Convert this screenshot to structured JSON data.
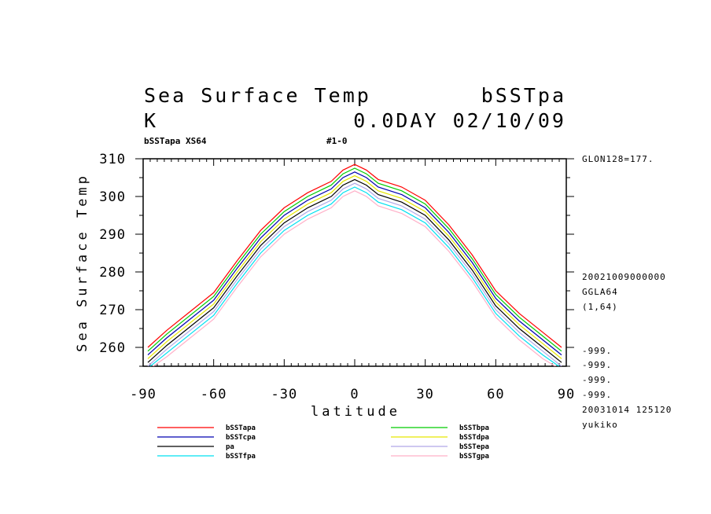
{
  "header": {
    "title": "Sea Surface Temp",
    "title_right": "bSSTpa",
    "unit": "K",
    "time": "0.0DAY 02/10/09",
    "sub_left": "bSSTapa XS64",
    "sub_mid": "#1-0"
  },
  "side_info": {
    "lon": "GLON128=177.",
    "date": "20021009000000",
    "grid": "GGLA64",
    "range": "(1,64)",
    "undef": [
      "-999.",
      "-999.",
      "-999.",
      "-999."
    ],
    "created": "20031014 125120",
    "user": "yukiko"
  },
  "chart_data": {
    "type": "line",
    "title": "Sea Surface Temp",
    "xlabel": "latitude",
    "ylabel": "Sea Surface Temp",
    "xlim": [
      -90,
      90
    ],
    "ylim": [
      255,
      310
    ],
    "x_ticks": [
      -90,
      -60,
      -30,
      0,
      30,
      60,
      90
    ],
    "y_ticks": [
      260,
      270,
      280,
      290,
      300,
      310
    ],
    "x": [
      -88,
      -80,
      -70,
      -60,
      -50,
      -40,
      -30,
      -20,
      -10,
      -5,
      0,
      5,
      10,
      20,
      30,
      40,
      50,
      60,
      70,
      80,
      88
    ],
    "series": [
      {
        "name": "bSSTapa",
        "color": "#ff0000",
        "values": [
          260.0,
          264.5,
          269.5,
          274.5,
          283.0,
          291.0,
          297.0,
          301.0,
          304.0,
          307.0,
          308.5,
          307.0,
          304.5,
          302.5,
          299.0,
          292.5,
          284.5,
          275.0,
          269.0,
          264.0,
          260.0
        ]
      },
      {
        "name": "bSSTbpa",
        "color": "#00cc00",
        "values": [
          259.0,
          263.5,
          268.5,
          273.5,
          282.0,
          290.0,
          296.0,
          300.0,
          303.0,
          306.0,
          307.5,
          306.0,
          303.5,
          301.5,
          298.0,
          291.5,
          283.5,
          274.0,
          268.0,
          263.0,
          259.0
        ]
      },
      {
        "name": "bSSTcpa",
        "color": "#0000b0",
        "values": [
          258.0,
          262.5,
          267.5,
          272.5,
          281.0,
          289.0,
          295.0,
          299.0,
          302.0,
          305.0,
          306.5,
          305.0,
          302.5,
          300.5,
          297.0,
          290.5,
          282.5,
          273.0,
          267.0,
          262.0,
          258.0
        ]
      },
      {
        "name": "bSSTdpa",
        "color": "#e6e600",
        "values": [
          257.0,
          261.5,
          266.5,
          271.5,
          280.0,
          288.0,
          294.0,
          298.0,
          301.0,
          304.0,
          305.5,
          304.0,
          301.5,
          299.5,
          296.0,
          289.5,
          281.5,
          272.0,
          266.0,
          261.0,
          257.0
        ]
      },
      {
        "name": "pa",
        "color": "#000000",
        "values": [
          256.0,
          260.5,
          265.5,
          270.5,
          279.0,
          287.0,
          293.0,
          297.0,
          300.0,
          303.0,
          304.5,
          303.0,
          300.5,
          298.5,
          295.0,
          288.5,
          280.5,
          271.0,
          265.0,
          260.0,
          256.0
        ]
      },
      {
        "name": "bSSTepa",
        "color": "#b0a8e8",
        "values": [
          255.0,
          259.5,
          264.5,
          269.5,
          278.0,
          286.0,
          292.0,
          296.0,
          299.0,
          302.0,
          303.5,
          302.0,
          299.5,
          297.5,
          294.0,
          287.5,
          279.5,
          270.0,
          264.0,
          259.0,
          255.0
        ]
      },
      {
        "name": "bSSTfpa",
        "color": "#00e0f0",
        "values": [
          254.5,
          258.5,
          263.5,
          268.5,
          277.0,
          285.0,
          291.0,
          295.0,
          298.0,
          301.0,
          302.5,
          301.0,
          298.5,
          296.5,
          293.0,
          286.5,
          278.5,
          269.0,
          263.0,
          258.0,
          254.5
        ]
      },
      {
        "name": "bSSTgpa",
        "color": "#ffb0c8",
        "values": [
          254.0,
          257.5,
          262.5,
          267.5,
          276.0,
          284.0,
          290.0,
          294.0,
          297.0,
          300.0,
          301.5,
          300.0,
          297.5,
          295.5,
          292.0,
          285.5,
          277.5,
          268.0,
          262.0,
          257.0,
          254.0
        ]
      }
    ],
    "legend": {
      "placement": "bottom",
      "left": [
        "bSSTapa",
        "bSSTcpa",
        "pa",
        "bSSTfpa"
      ],
      "right": [
        "bSSTbpa",
        "bSSTdpa",
        "bSSTepa",
        "bSSTgpa"
      ]
    },
    "grid": false
  }
}
